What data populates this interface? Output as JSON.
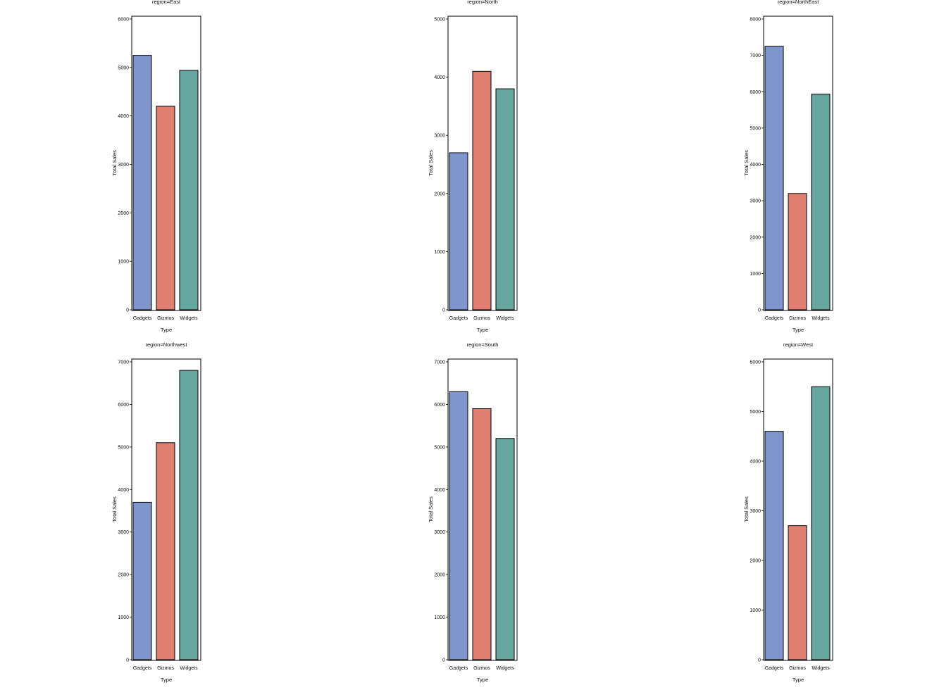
{
  "chart_data": [
    {
      "type": "bar",
      "title": "region=East",
      "xlabel": "Type",
      "ylabel": "Total Sales",
      "categories": [
        "Gadgets",
        "Gizmos",
        "Widgets"
      ],
      "values": [
        5250,
        4200,
        4940
      ],
      "ylim": [
        0,
        6000
      ],
      "yticks": [
        0,
        1000,
        2000,
        3000,
        4000,
        5000,
        6000
      ]
    },
    {
      "type": "bar",
      "title": "region=North",
      "xlabel": "Type",
      "ylabel": "Total Sales",
      "categories": [
        "Gadgets",
        "Gizmos",
        "Widgets"
      ],
      "values": [
        2700,
        4100,
        3800
      ],
      "ylim": [
        0,
        5000
      ],
      "yticks": [
        0,
        1000,
        2000,
        3000,
        4000,
        5000
      ]
    },
    {
      "type": "bar",
      "title": "region=NorthEast",
      "xlabel": "Type",
      "ylabel": "Total Sales",
      "categories": [
        "Gadgets",
        "Gizmos",
        "Widgets"
      ],
      "values": [
        7250,
        3200,
        5930
      ],
      "ylim": [
        0,
        8000
      ],
      "yticks": [
        0,
        1000,
        2000,
        3000,
        4000,
        5000,
        6000,
        7000,
        8000
      ]
    },
    {
      "type": "bar",
      "title": "region=Northwest",
      "xlabel": "Type",
      "ylabel": "Total Sales",
      "categories": [
        "Gadgets",
        "Gizmos",
        "Widgets"
      ],
      "values": [
        3700,
        5100,
        6800
      ],
      "ylim": [
        0,
        7000
      ],
      "yticks": [
        0,
        1000,
        2000,
        3000,
        4000,
        5000,
        6000,
        7000
      ]
    },
    {
      "type": "bar",
      "title": "region=South",
      "xlabel": "Type",
      "ylabel": "Total Sales",
      "categories": [
        "Gadgets",
        "Gizmos",
        "Widgets"
      ],
      "values": [
        6300,
        5900,
        5200
      ],
      "ylim": [
        0,
        7000
      ],
      "yticks": [
        0,
        1000,
        2000,
        3000,
        4000,
        5000,
        6000,
        7000
      ]
    },
    {
      "type": "bar",
      "title": "region=West",
      "xlabel": "Type",
      "ylabel": "Total Sales",
      "categories": [
        "Gadgets",
        "Gizmos",
        "Widgets"
      ],
      "values": [
        4600,
        2700,
        5500
      ],
      "ylim": [
        0,
        6000
      ],
      "yticks": [
        0,
        1000,
        2000,
        3000,
        4000,
        5000,
        6000
      ]
    }
  ],
  "colors": {
    "Gadgets": "#7f96cd",
    "Gizmos": "#e07f70",
    "Widgets": "#67a69f"
  },
  "grid": false,
  "legend": "none"
}
